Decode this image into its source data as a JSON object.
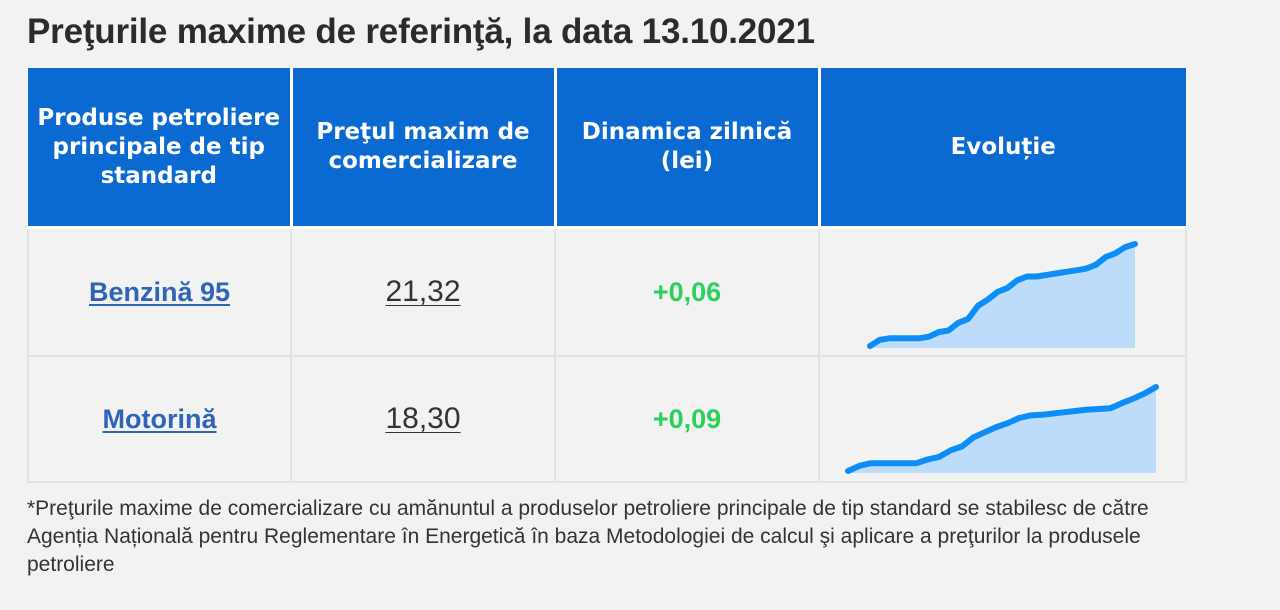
{
  "title": "Preţurile maxime de referinţă, la data 13.10.2021",
  "table": {
    "headers": [
      "Produse petroliere principale de tip standard",
      "Preţul maxim de comercializare",
      "Dinamica zilnică (lei)",
      "Evoluție"
    ],
    "rows": [
      {
        "product": "Benzină 95",
        "price": "21,32",
        "dynamic": "+0,06",
        "trend": [
          20.0,
          20.08,
          20.1,
          20.1,
          20.1,
          20.1,
          20.12,
          20.18,
          20.2,
          20.3,
          20.35,
          20.52,
          20.6,
          20.7,
          20.75,
          20.85,
          20.9,
          20.9,
          20.92,
          20.94,
          20.96,
          20.98,
          21.0,
          21.05,
          21.15,
          21.2,
          21.28,
          21.32
        ]
      },
      {
        "product": "Motorină",
        "price": "18,30",
        "dynamic": "+0,09",
        "trend": [
          17.0,
          17.08,
          17.12,
          17.12,
          17.12,
          17.12,
          17.12,
          17.18,
          17.22,
          17.32,
          17.38,
          17.52,
          17.6,
          17.68,
          17.74,
          17.82,
          17.86,
          17.87,
          17.89,
          17.91,
          17.93,
          17.95,
          17.96,
          17.97,
          18.05,
          18.12,
          18.2,
          18.3
        ]
      }
    ]
  },
  "colors": {
    "header_bg": "#0a6ad1",
    "link": "#2f65b8",
    "positive": "#2bd15b",
    "spark_line": "#0d8ef7",
    "spark_fill": "#bcdcfa"
  },
  "footnote": "*Preţurile maxime de comercializare cu amănuntul a produselor petroliere principale de tip standard se stabilesc de către Agenția Națională pentru Reglementare în Energetică în baza Metodologiei de calcul şi aplicare a preţurilor la produsele petroliere"
}
